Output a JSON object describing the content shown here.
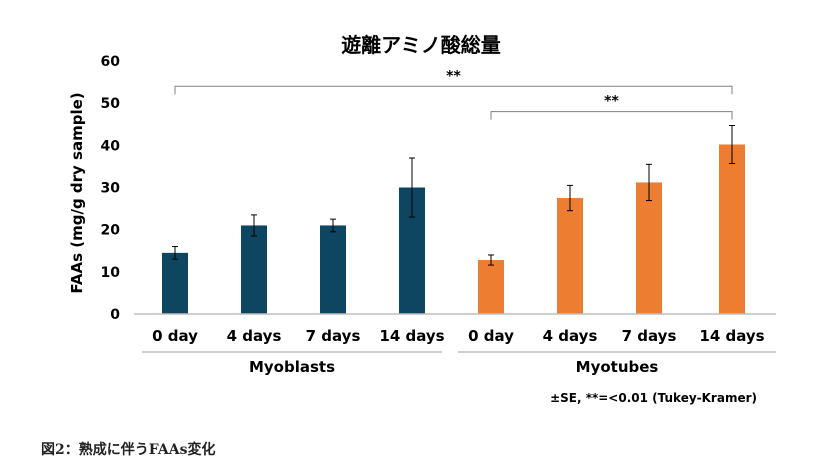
{
  "chart_data": {
    "type": "bar",
    "title": "遊離アミノ酸総量",
    "ylabel": "FAAs (mg/g dry sample)",
    "xlabel": "",
    "ylim": [
      0,
      60
    ],
    "yticks": [
      "0",
      "10",
      "20",
      "30",
      "40",
      "50",
      "60"
    ],
    "grid": false,
    "groups": [
      {
        "name": "Myoblasts",
        "color": "#0e4561",
        "categories": [
          "0 day",
          "4 days",
          "7 days",
          "14 days"
        ],
        "values": [
          14.5,
          21,
          21,
          30
        ],
        "errors": [
          1.5,
          2.5,
          1.5,
          7
        ]
      },
      {
        "name": "Myotubes",
        "color": "#ed7d31",
        "categories": [
          "0 day",
          "4 days",
          "7 days",
          "14 days"
        ],
        "values": [
          12.8,
          27.5,
          31.2,
          40.2
        ],
        "errors": [
          1.2,
          3,
          4.3,
          4.5
        ]
      }
    ],
    "significance": [
      {
        "label": "**",
        "level": 54
      },
      {
        "label": "**",
        "level": 48
      }
    ],
    "note": "±SE, **=<0.01 (Tukey-Kramer)"
  },
  "caption": "図2：熟成に伴うFAAs変化",
  "colors": {
    "axis": "#bfbfbf",
    "bracket": "#7f7f7f",
    "errorbar": "#000000",
    "text": "#000000"
  }
}
